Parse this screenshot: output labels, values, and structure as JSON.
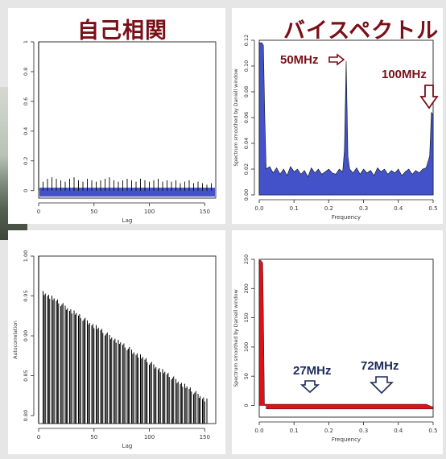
{
  "headings": {
    "autocorrelation": "自己相関",
    "bispectrum": "バイスペクトル"
  },
  "annotations": {
    "p2_peak1": "50MHz",
    "p2_peak2": "100MHz",
    "p4_peak1": "27MHz",
    "p4_peak2": "72MHz"
  },
  "colors": {
    "heading": "#7a0f18",
    "blue_fill": "#4352c8",
    "red_fill": "#e10f16",
    "annotation_bottom": "#1d2a5a"
  },
  "chart_data": [
    {
      "type": "bar",
      "subtype": "acf",
      "xlabel": "Lag",
      "ylabel": "",
      "xlim": [
        0,
        160
      ],
      "ylim": [
        -0.05,
        1.0
      ],
      "xticks": [
        0,
        50,
        100,
        150
      ],
      "xtick_labels": [
        "0",
        "50",
        "100",
        "150"
      ],
      "yticks": [
        0,
        0.2,
        0.4,
        0.6,
        0.8,
        1.0
      ],
      "ytick_labels": [
        "0",
        "0.2",
        "0.4",
        "0.6",
        "0.8",
        "1"
      ],
      "band": [
        -0.04,
        0.02
      ],
      "lags": [
        4,
        8,
        12,
        16,
        20,
        24,
        28,
        32,
        36,
        40,
        44,
        48,
        52,
        56,
        60,
        64,
        68,
        72,
        76,
        80,
        84,
        88,
        92,
        96,
        100,
        104,
        108,
        112,
        116,
        120,
        124,
        128,
        132,
        136,
        140,
        144,
        148,
        152,
        156
      ],
      "values": [
        0.06,
        0.08,
        0.09,
        0.08,
        0.07,
        0.06,
        0.08,
        0.09,
        0.07,
        0.06,
        0.08,
        0.07,
        0.06,
        0.07,
        0.08,
        0.09,
        0.07,
        0.06,
        0.07,
        0.08,
        0.07,
        0.06,
        0.08,
        0.07,
        0.06,
        0.07,
        0.08,
        0.06,
        0.07,
        0.06,
        0.07,
        0.05,
        0.06,
        0.07,
        0.05,
        0.06,
        0.05,
        0.04,
        0.05
      ]
    },
    {
      "type": "area",
      "subtype": "spectrum",
      "xlabel": "Frequency",
      "ylabel": "Spectrum smoothed by Daniell window",
      "xlim": [
        0,
        0.5
      ],
      "ylim": [
        0,
        0.12
      ],
      "xticks": [
        0.0,
        0.1,
        0.2,
        0.3,
        0.4,
        0.5
      ],
      "xtick_labels": [
        "0.0",
        "0.1",
        "0.2",
        "0.3",
        "0.4",
        "0.5"
      ],
      "yticks": [
        0.0,
        0.02,
        0.04,
        0.06,
        0.08,
        0.1,
        0.12
      ],
      "ytick_labels": [
        "0.00",
        "0.02",
        "0.04",
        "0.06",
        "0.08",
        "0.10",
        "0.12"
      ],
      "x": [
        0.0,
        0.004,
        0.008,
        0.012,
        0.016,
        0.02,
        0.03,
        0.04,
        0.05,
        0.06,
        0.07,
        0.08,
        0.09,
        0.1,
        0.11,
        0.12,
        0.13,
        0.14,
        0.15,
        0.16,
        0.17,
        0.18,
        0.19,
        0.2,
        0.21,
        0.22,
        0.23,
        0.24,
        0.245,
        0.25,
        0.255,
        0.26,
        0.27,
        0.28,
        0.29,
        0.3,
        0.31,
        0.32,
        0.33,
        0.34,
        0.35,
        0.36,
        0.37,
        0.38,
        0.39,
        0.4,
        0.41,
        0.42,
        0.43,
        0.44,
        0.45,
        0.46,
        0.47,
        0.48,
        0.49,
        0.495,
        0.5
      ],
      "values": [
        0.118,
        0.118,
        0.118,
        0.116,
        0.06,
        0.02,
        0.022,
        0.017,
        0.021,
        0.016,
        0.02,
        0.015,
        0.022,
        0.018,
        0.02,
        0.016,
        0.019,
        0.014,
        0.021,
        0.017,
        0.02,
        0.016,
        0.018,
        0.02,
        0.017,
        0.016,
        0.02,
        0.018,
        0.035,
        0.104,
        0.03,
        0.02,
        0.017,
        0.021,
        0.016,
        0.02,
        0.017,
        0.019,
        0.015,
        0.021,
        0.018,
        0.02,
        0.016,
        0.019,
        0.017,
        0.02,
        0.015,
        0.018,
        0.02,
        0.016,
        0.019,
        0.017,
        0.02,
        0.021,
        0.03,
        0.064,
        0.062
      ]
    },
    {
      "type": "bar",
      "subtype": "acf",
      "xlabel": "Lag",
      "ylabel": "Autocorrelation",
      "xlim": [
        0,
        160
      ],
      "ylim": [
        0.79,
        1.0
      ],
      "xticks": [
        0,
        50,
        100,
        150
      ],
      "xtick_labels": [
        "0",
        "50",
        "100",
        "150"
      ],
      "yticks": [
        0.8,
        0.85,
        0.9,
        0.95,
        1.0
      ],
      "ytick_labels": [
        "0.80",
        "0.85",
        "0.90",
        "0.95",
        "1.00"
      ]
    },
    {
      "type": "area",
      "subtype": "spectrum",
      "xlabel": "Frequency",
      "ylabel": "Spectrum smoothed by Daniell window",
      "xlim": [
        0,
        0.5
      ],
      "ylim": [
        -20,
        250
      ],
      "xticks": [
        0.0,
        0.1,
        0.2,
        0.3,
        0.4,
        0.5
      ],
      "xtick_labels": [
        "0.0",
        "0.1",
        "0.2",
        "0.3",
        "0.4",
        "0.5"
      ],
      "yticks": [
        0,
        50,
        100,
        150,
        200,
        250
      ],
      "ytick_labels": [
        "0",
        "50",
        "100",
        "150",
        "200",
        "250"
      ],
      "x": [
        0.0,
        0.005,
        0.01,
        0.012,
        0.015,
        0.02,
        0.1,
        0.2,
        0.3,
        0.4,
        0.48,
        0.5
      ],
      "values": [
        248,
        248,
        244,
        160,
        2,
        2,
        2,
        2,
        2,
        2,
        2,
        -3
      ]
    }
  ]
}
